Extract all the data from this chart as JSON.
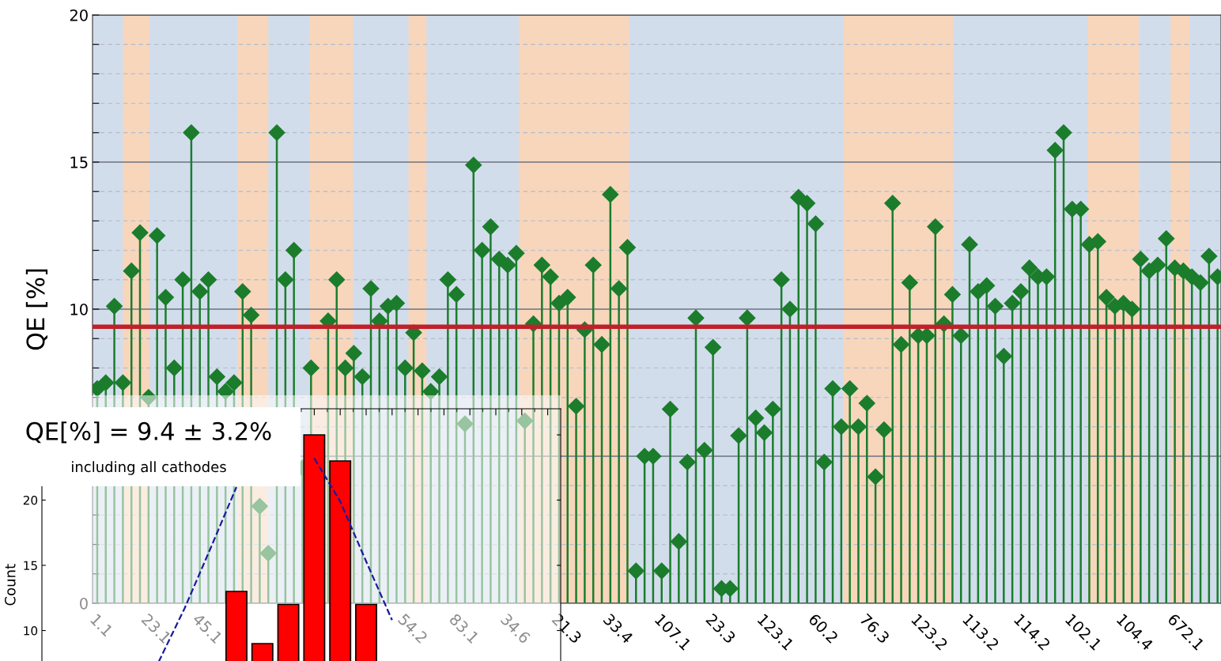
{
  "chart_data": [
    {
      "type": "lollipop",
      "ylabel": "QE [%]",
      "categories": [
        "1.1",
        null,
        null,
        null,
        null,
        null,
        "23.1",
        null,
        null,
        null,
        null,
        null,
        "45.1",
        null,
        null,
        null,
        null,
        null,
        null,
        null,
        null,
        null,
        null,
        null,
        null,
        null,
        null,
        null,
        null,
        null,
        null,
        null,
        null,
        null,
        null,
        null,
        "54.2",
        null,
        null,
        null,
        null,
        null,
        "83.1",
        null,
        null,
        null,
        null,
        null,
        "34.6",
        null,
        null,
        null,
        null,
        null,
        "21.3",
        null,
        null,
        null,
        null,
        null,
        "33.4",
        null,
        null,
        null,
        null,
        null,
        "107.1",
        null,
        null,
        null,
        null,
        null,
        "23.3",
        null,
        null,
        null,
        null,
        null,
        "123.1",
        null,
        null,
        null,
        null,
        null,
        "60.2",
        null,
        null,
        null,
        null,
        null,
        "76.3",
        null,
        null,
        null,
        null,
        null,
        "123.2",
        null,
        null,
        null,
        null,
        null,
        "113.2",
        null,
        null,
        null,
        null,
        null,
        "114.2",
        null,
        null,
        null,
        null,
        null,
        "102.1",
        null,
        null,
        null,
        null,
        null,
        "104.4",
        null,
        null,
        null,
        null,
        null,
        "672.1",
        null,
        null,
        null,
        null,
        null
      ],
      "values": [
        7.3,
        7.5,
        10.1,
        7.5,
        11.3,
        12.6,
        7.0,
        12.5,
        10.4,
        8.0,
        11.0,
        16.0,
        10.6,
        11.0,
        7.7,
        7.2,
        7.5,
        10.6,
        9.8,
        3.3,
        1.7,
        16.0,
        11.0,
        12.0,
        4.6,
        8.0,
        null,
        9.6,
        11.0,
        8.0,
        8.5,
        7.7,
        10.7,
        9.6,
        10.1,
        10.2,
        8.0,
        9.2,
        7.9,
        7.2,
        7.7,
        11.0,
        10.5,
        6.1,
        14.9,
        12.0,
        12.8,
        11.7,
        11.5,
        11.9,
        6.2,
        9.5,
        11.5,
        11.1,
        10.2,
        10.4,
        6.7,
        9.3,
        11.5,
        8.8,
        13.9,
        10.7,
        12.1,
        1.1,
        5.0,
        5.0,
        1.1,
        6.6,
        2.1,
        4.8,
        9.7,
        5.2,
        8.7,
        0.5,
        0.5,
        5.7,
        9.7,
        6.3,
        5.8,
        6.6,
        11.0,
        10.0,
        13.8,
        13.6,
        12.9,
        4.8,
        7.3,
        6.0,
        7.3,
        6.0,
        6.8,
        4.3,
        5.9,
        13.6,
        8.8,
        10.9,
        9.1,
        9.1,
        12.8,
        9.5,
        10.5,
        9.1,
        12.2,
        10.6,
        10.8,
        10.1,
        8.4,
        10.2,
        10.6,
        11.4,
        11.1,
        11.1,
        15.4,
        16.0,
        13.4,
        13.4,
        12.2,
        12.3,
        10.4,
        10.1,
        10.2,
        10.0,
        11.7,
        11.3,
        11.5,
        12.4,
        11.4,
        11.3,
        11.1,
        10.9,
        11.8,
        11.1
      ],
      "color": "#1b7d2c",
      "marker": "diamond",
      "ylim": [
        0,
        20
      ],
      "yticks": [
        0,
        {
          "value": 1,
          "label": null
        },
        {
          "value": 2,
          "label": null
        },
        {
          "value": 3,
          "label": null
        },
        {
          "value": 4,
          "label": null
        },
        {
          "value": 5,
          "label": null
        },
        {
          "value": 6,
          "label": null
        },
        {
          "value": 7,
          "label": null
        },
        {
          "value": 8,
          "label": null
        },
        {
          "value": 9,
          "label": null
        },
        10,
        {
          "value": 11,
          "label": null
        },
        {
          "value": 12,
          "label": null
        },
        {
          "value": 13,
          "label": null
        },
        {
          "value": 14,
          "label": null
        },
        15,
        {
          "value": 16,
          "label": null
        },
        {
          "value": 17,
          "label": null
        },
        {
          "value": 18,
          "label": null
        },
        {
          "value": 19,
          "label": null
        },
        20
      ],
      "grid": true,
      "ref_lines": [
        {
          "axis": "y",
          "value": 9.4,
          "color": "#c0202a"
        }
      ]
    },
    {
      "type": "bar",
      "ylabel": "Count",
      "categories": [
        null,
        null,
        null,
        null,
        null,
        null,
        null,
        null,
        null,
        null,
        null,
        null,
        null,
        null,
        null,
        null,
        null,
        null,
        null,
        null
      ],
      "series": [
        {
          "type": "bar",
          "color": "#ff0000",
          "values": [
            null,
            null,
            null,
            null,
            null,
            null,
            null,
            13,
            9,
            12,
            25,
            23,
            12,
            null,
            null,
            null,
            null,
            null,
            null,
            null
          ]
        },
        {
          "type": "line",
          "color": "#1a1aa0",
          "line_style": "dashed",
          "values": [
            null,
            null,
            null,
            null,
            7.6,
            11.7,
            16.3,
            21.0,
            null,
            null,
            23.2,
            19.9,
            15.3,
            10.8,
            null,
            null,
            null,
            null,
            null,
            null
          ]
        }
      ],
      "ylim": [
        0,
        27
      ],
      "yticks": [
        10,
        15,
        20,
        {
          "value": 25,
          "label": null
        }
      ],
      "tick_labels": "y",
      "annotations": [
        "QE[%] = 9.4 ± 3.2%",
        "including all cathodes"
      ]
    }
  ]
}
